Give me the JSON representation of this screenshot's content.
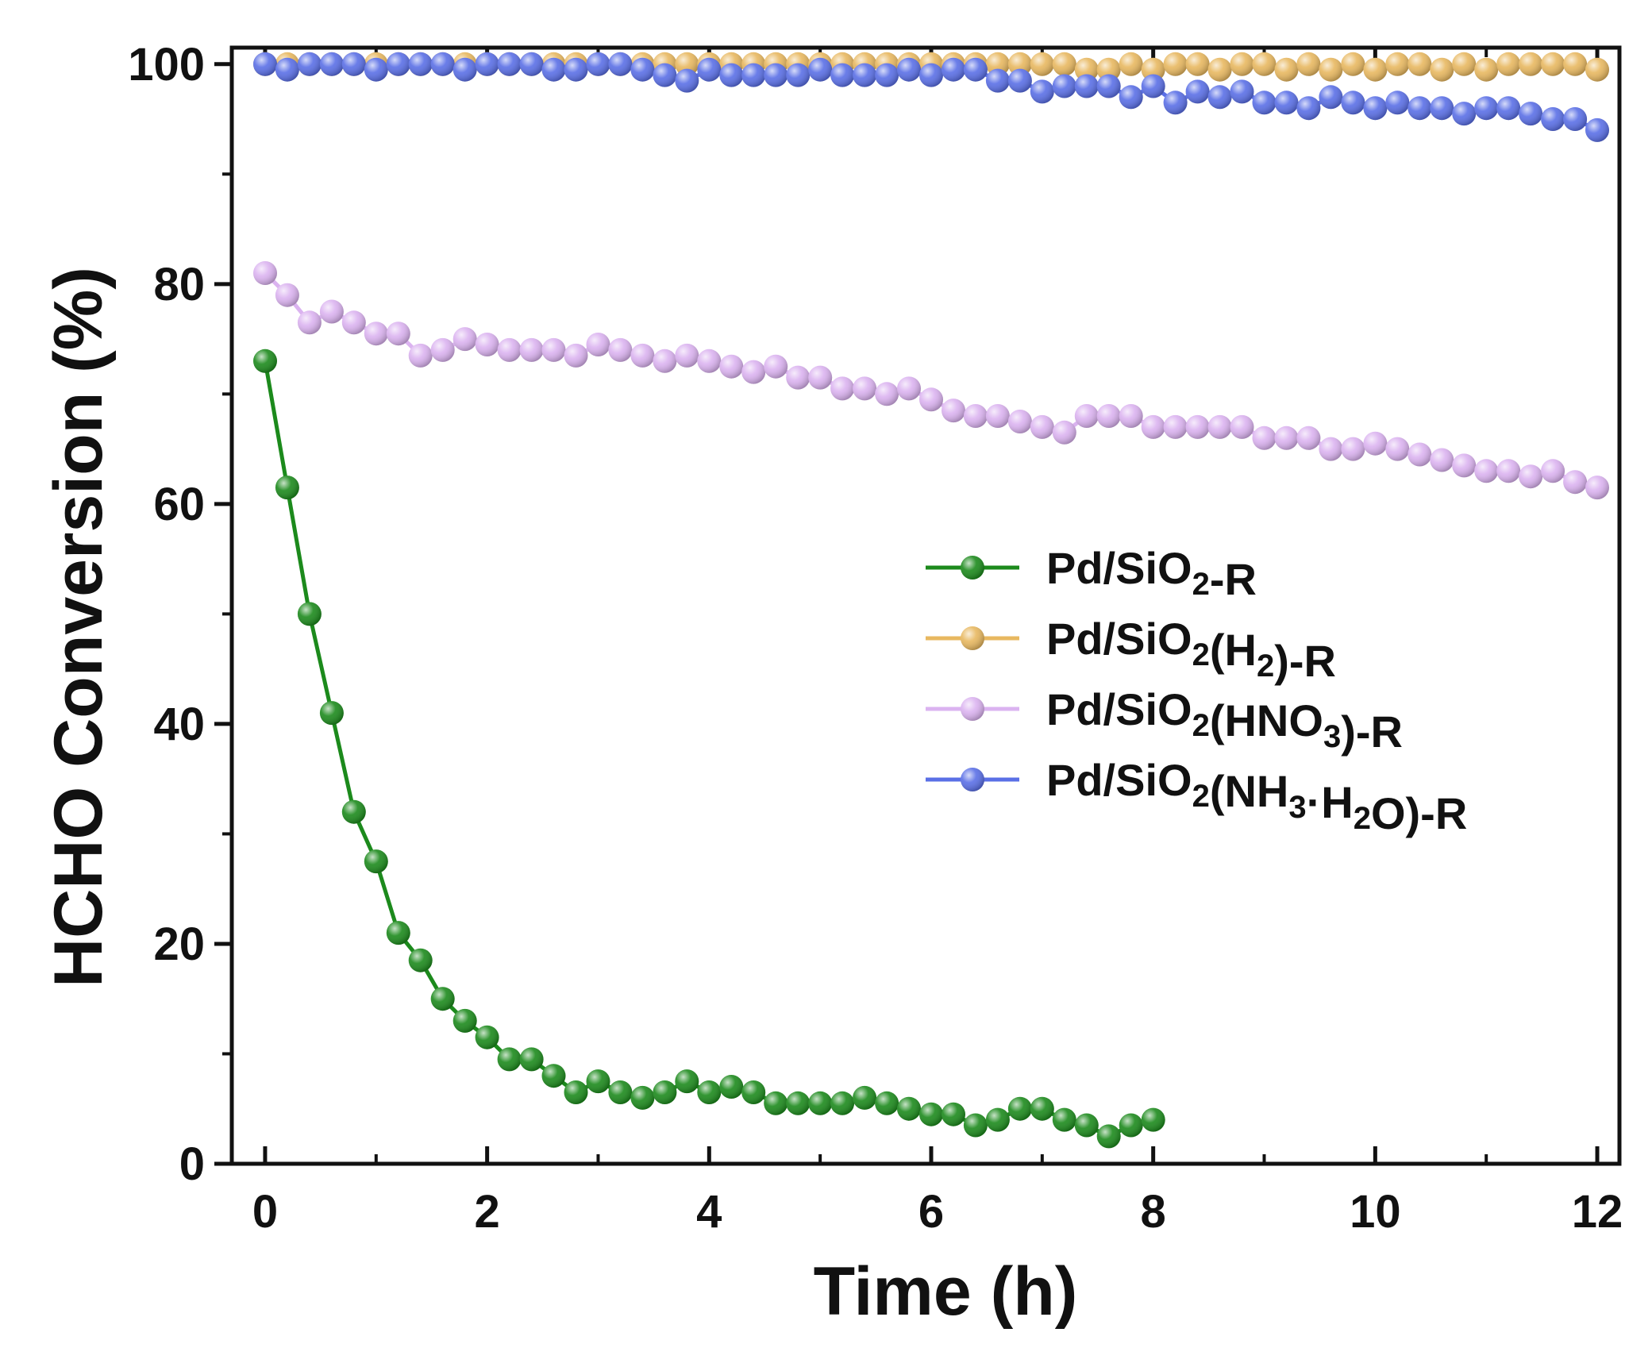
{
  "chart_data": {
    "type": "line",
    "title": "",
    "xlabel": "Time (h)",
    "ylabel": "HCHO Conversion (%)",
    "xlim": [
      -0.3,
      12.2
    ],
    "ylim": [
      0,
      101.5
    ],
    "xticks": [
      0,
      2,
      4,
      6,
      8,
      10,
      12
    ],
    "yticks": [
      0,
      20,
      40,
      60,
      80,
      100
    ],
    "x_minor_step": 1,
    "y_minor_step": 10,
    "grid": false,
    "legend_position": "center-right",
    "series": [
      {
        "name": "Pd/SiO2-R",
        "label_parts": [
          [
            "Pd/SiO",
            ""
          ],
          [
            "2",
            "sub"
          ],
          [
            "-R",
            ""
          ]
        ],
        "color": "#1c8a1c",
        "line": true,
        "x_start": 0,
        "x_step": 0.2,
        "values": [
          73,
          61.5,
          50,
          41,
          32,
          27.5,
          21,
          18.5,
          15,
          13,
          11.5,
          9.5,
          9.5,
          8,
          6.5,
          7.5,
          6.5,
          6,
          6.5,
          7.5,
          6.5,
          7,
          6.5,
          5.5,
          5.5,
          5.5,
          5.5,
          6,
          5.5,
          5,
          4.5,
          4.5,
          3.5,
          4,
          5,
          5,
          4,
          3.5,
          2.5,
          3.5,
          4
        ]
      },
      {
        "name": "Pd/SiO2(H2)-R",
        "label_parts": [
          [
            "Pd/SiO",
            ""
          ],
          [
            "2",
            "sub"
          ],
          [
            "(H",
            ""
          ],
          [
            "2",
            "sub"
          ],
          [
            ")-R",
            ""
          ]
        ],
        "color": "#e8b860",
        "line": true,
        "x_start": 0,
        "x_step": 0.2,
        "values": [
          100,
          100,
          100,
          100,
          100,
          100,
          100,
          100,
          100,
          100,
          100,
          100,
          100,
          100,
          100,
          100,
          100,
          100,
          100,
          100,
          100,
          100,
          100,
          100,
          100,
          100,
          100,
          100,
          100,
          100,
          100,
          100,
          100,
          100,
          100,
          100,
          100,
          99.5,
          99.5,
          100,
          99.5,
          100,
          100,
          99.5,
          100,
          100,
          99.5,
          100,
          99.5,
          100,
          99.5,
          100,
          100,
          99.5,
          100,
          99.5,
          100,
          100,
          100,
          100,
          99.5
        ]
      },
      {
        "name": "Pd/SiO2(HNO3)-R",
        "label_parts": [
          [
            "Pd/SiO",
            ""
          ],
          [
            "2",
            "sub"
          ],
          [
            "(HNO",
            ""
          ],
          [
            "3",
            "sub"
          ],
          [
            ")-R",
            ""
          ]
        ],
        "color": "#dbb3f0",
        "line": true,
        "x_start": 0,
        "x_step": 0.2,
        "values": [
          81,
          79,
          76.5,
          77.5,
          76.5,
          75.5,
          75.5,
          73.5,
          74,
          75,
          74.5,
          74,
          74,
          74,
          73.5,
          74.5,
          74,
          73.5,
          73,
          73.5,
          73,
          72.5,
          72,
          72.5,
          71.5,
          71.5,
          70.5,
          70.5,
          70,
          70.5,
          69.5,
          68.5,
          68,
          68,
          67.5,
          67,
          66.5,
          68,
          68,
          68,
          67,
          67,
          67,
          67,
          67,
          66,
          66,
          66,
          65,
          65,
          65.5,
          65,
          64.5,
          64,
          63.5,
          63,
          63,
          62.5,
          63,
          62,
          61.5
        ]
      },
      {
        "name": "Pd/SiO2(NH3·H2O)-R",
        "label_parts": [
          [
            "Pd/SiO",
            ""
          ],
          [
            "2",
            "sub"
          ],
          [
            "(NH",
            ""
          ],
          [
            "3",
            "sub"
          ],
          [
            "·H",
            ""
          ],
          [
            "2",
            "sub"
          ],
          [
            "O)-R",
            ""
          ]
        ],
        "color": "#5a6fe6",
        "line": true,
        "x_start": 0,
        "x_step": 0.2,
        "values": [
          100,
          99.5,
          100,
          100,
          100,
          99.5,
          100,
          100,
          100,
          99.5,
          100,
          100,
          100,
          99.5,
          99.5,
          100,
          100,
          99.5,
          99,
          98.5,
          99.5,
          99,
          99,
          99,
          99,
          99.5,
          99,
          99,
          99,
          99.5,
          99,
          99.5,
          99.5,
          98.5,
          98.5,
          97.5,
          98,
          98,
          98,
          97,
          98,
          96.5,
          97.5,
          97,
          97.5,
          96.5,
          96.5,
          96,
          97,
          96.5,
          96,
          96.5,
          96,
          96,
          95.5,
          96,
          96,
          95.5,
          95,
          95,
          94
        ]
      }
    ]
  }
}
